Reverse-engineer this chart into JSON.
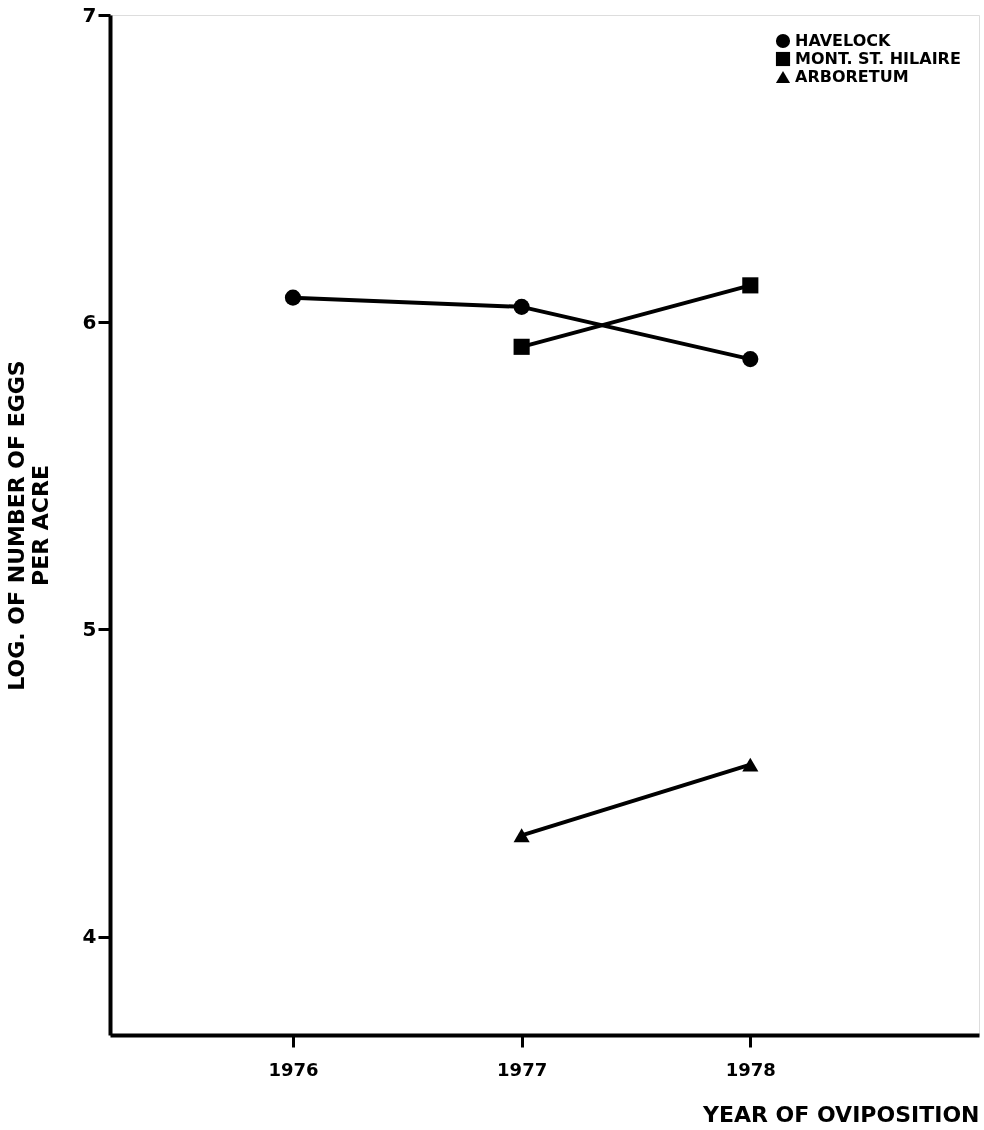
{
  "chart_data": {
    "type": "line",
    "xlabel": "YEAR OF OVIPOSITION",
    "ylabel": "LOG. OF NUMBER OF EGGS\nPER ACRE",
    "xlim": [
      1975.2,
      1979.0
    ],
    "xticks": [
      1976,
      1977,
      1978
    ],
    "ylim": [
      3.68,
      7
    ],
    "yticks": [
      4,
      5,
      6,
      7
    ],
    "grid": false,
    "legend": "top right",
    "line_style": "solid",
    "series": [
      {
        "name": "HAVELOCK",
        "color": "#000000",
        "marker": "circle",
        "x": [
          1976,
          1977,
          1978
        ],
        "values": [
          6.08,
          6.05,
          5.88
        ]
      },
      {
        "name": "MONT. ST. HILAIRE",
        "color": "#000000",
        "marker": "square",
        "x": [
          1977,
          1978
        ],
        "values": [
          5.92,
          6.12
        ]
      },
      {
        "name": "ARBORETUM",
        "color": "#000000",
        "marker": "triangle",
        "x": [
          1977,
          1978
        ],
        "values": [
          4.33,
          4.56
        ]
      }
    ]
  }
}
